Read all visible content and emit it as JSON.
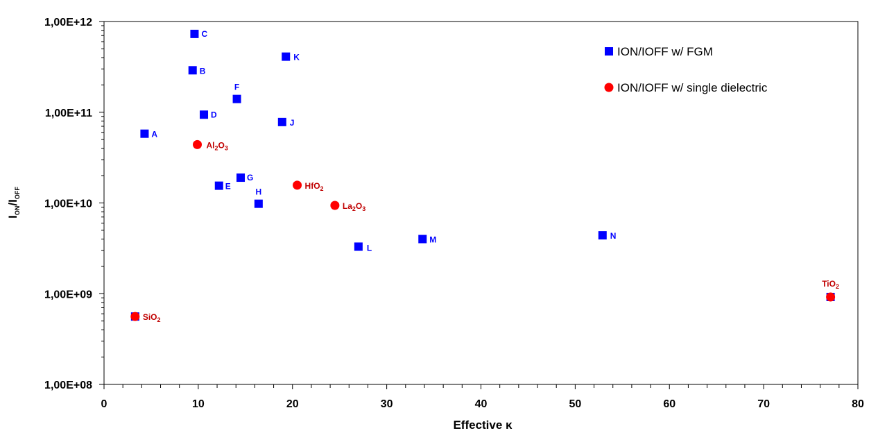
{
  "chart_data": {
    "type": "scatter",
    "xlabel": "Effective κ",
    "ylabel_main": "I",
    "ylabel_sub1": "ON",
    "ylabel_sep": "/I",
    "ylabel_sub2": "OFF",
    "xlim": [
      0,
      80
    ],
    "ylim": [
      100000000,
      1000000000000
    ],
    "yscale": "log",
    "x_ticks": [
      0,
      10,
      20,
      30,
      40,
      50,
      60,
      70,
      80
    ],
    "x_tick_labels": [
      "0",
      "10",
      "20",
      "30",
      "40",
      "50",
      "60",
      "70",
      "80"
    ],
    "y_ticks": [
      100000000,
      1000000000,
      10000000000,
      100000000000,
      1000000000000
    ],
    "y_tick_labels": [
      "1,00E+08",
      "1,00E+09",
      "1,00E+10",
      "1,00E+11",
      "1,00E+12"
    ],
    "grid": false,
    "legend_position": "top-right",
    "series": [
      {
        "name": "ION/IOFF w/ FGM",
        "color": "#0000ff",
        "marker": "square",
        "points": [
          {
            "label": "A",
            "x": 4.3,
            "y": 58000000000
          },
          {
            "label": "B",
            "x": 9.4,
            "y": 290000000000
          },
          {
            "label": "C",
            "x": 9.6,
            "y": 730000000000
          },
          {
            "label": "D",
            "x": 10.6,
            "y": 94000000000
          },
          {
            "label": "E",
            "x": 12.2,
            "y": 15500000000
          },
          {
            "label": "F",
            "x": 14.1,
            "y": 140000000000
          },
          {
            "label": "G",
            "x": 14.5,
            "y": 19000000000
          },
          {
            "label": "H",
            "x": 16.4,
            "y": 9800000000
          },
          {
            "label": "J",
            "x": 18.9,
            "y": 78000000000
          },
          {
            "label": "K",
            "x": 19.3,
            "y": 410000000000
          },
          {
            "label": "L",
            "x": 27.0,
            "y": 3300000000
          },
          {
            "label": "M",
            "x": 33.8,
            "y": 4000000000
          },
          {
            "label": "N",
            "x": 52.9,
            "y": 4400000000
          },
          {
            "label": "",
            "x": 3.3,
            "y": 560000000
          },
          {
            "label": "",
            "x": 77.1,
            "y": 920000000
          }
        ]
      },
      {
        "name": "ION/IOFF w/ single dielectric",
        "color": "#ff0000",
        "marker": "circle",
        "points": [
          {
            "label": "SiO",
            "sub": "2",
            "x": 3.3,
            "y": 560000000
          },
          {
            "label": "Al",
            "sub": "2",
            "label2": "O",
            "sub2": "3",
            "x": 9.9,
            "y": 44000000000
          },
          {
            "label": "HfO",
            "sub": "2",
            "x": 20.5,
            "y": 15700000000
          },
          {
            "label": "La",
            "sub": "2",
            "label2": "O",
            "sub2": "3",
            "x": 24.5,
            "y": 9400000000
          },
          {
            "label": "TiO",
            "sub": "2",
            "x": 77.1,
            "y": 920000000
          }
        ]
      }
    ]
  }
}
